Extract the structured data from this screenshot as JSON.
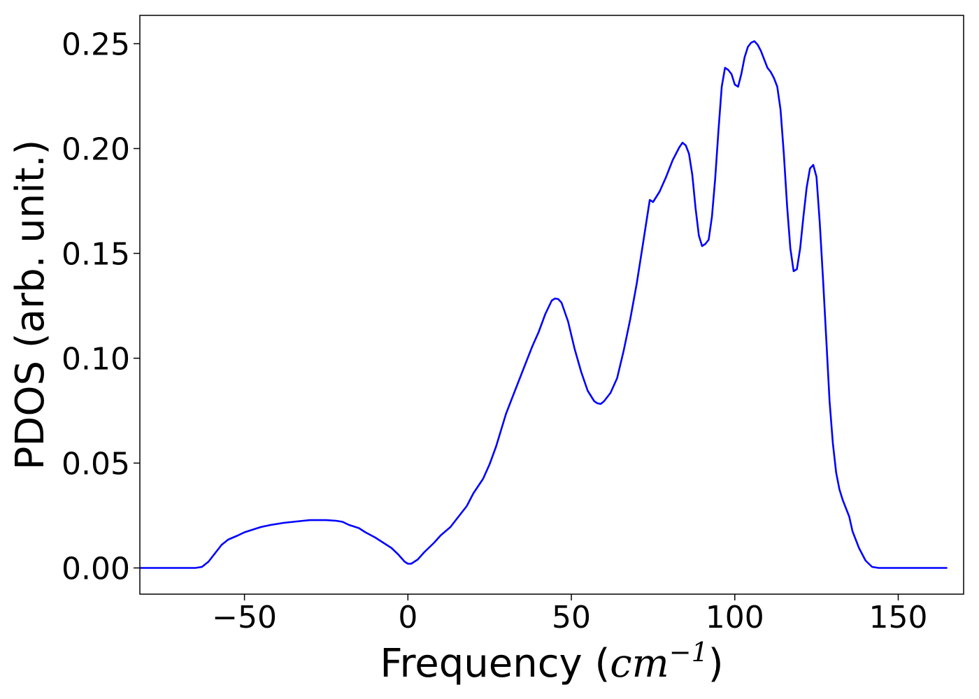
{
  "chart_data": {
    "type": "line",
    "xlabel": "Frequency (cm^-1)",
    "xlabel_parts": {
      "text": "Frequency (",
      "math_base": "cm",
      "math_sup": "−1",
      "close": ")"
    },
    "ylabel": "PDOS (arb. unit.)",
    "title": "",
    "xlim": [
      -82,
      170
    ],
    "ylim": [
      -0.0125,
      0.2635
    ],
    "xticks": [
      -50,
      0,
      50,
      100,
      150
    ],
    "xtick_labels": [
      "−50",
      "0",
      "50",
      "100",
      "150"
    ],
    "yticks": [
      0.0,
      0.05,
      0.1,
      0.15,
      0.2,
      0.25
    ],
    "ytick_labels": [
      "0.00",
      "0.05",
      "0.10",
      "0.15",
      "0.20",
      "0.25"
    ],
    "grid": false,
    "line_color": "#0000ff",
    "series": [
      {
        "x": [
          -82,
          -75,
          -70,
          -67,
          -65,
          -63,
          -61,
          -59,
          -57,
          -55,
          -52,
          -50,
          -47,
          -45,
          -42,
          -40,
          -38,
          -35,
          -32,
          -30,
          -27,
          -25,
          -22,
          -20,
          -18,
          -15,
          -13,
          -10,
          -8,
          -5,
          -3,
          -1,
          0,
          1,
          3,
          5,
          8,
          10,
          13,
          15,
          18,
          20,
          23,
          25,
          27,
          30,
          32,
          35,
          38,
          40,
          42,
          44,
          45,
          46,
          47,
          49,
          51,
          53,
          55,
          57,
          58,
          59,
          60,
          62,
          64,
          66,
          68,
          70,
          72,
          74,
          75,
          77,
          79,
          81,
          83,
          84,
          85,
          86,
          87,
          88,
          89,
          90,
          91,
          92,
          93,
          94,
          95,
          96,
          97,
          98,
          99,
          100,
          101,
          102,
          103,
          104,
          105,
          106,
          107,
          108,
          109,
          110,
          111,
          112,
          113,
          114,
          115,
          116,
          117,
          118,
          119,
          120,
          121,
          122,
          123,
          124,
          125,
          126,
          127,
          128,
          129,
          130,
          131,
          132,
          133,
          134,
          135,
          136,
          138,
          140,
          142,
          144,
          146,
          148,
          150,
          155,
          160,
          165
        ],
        "y": [
          0.0,
          0.0,
          0.0,
          0.0,
          0.0,
          0.0005,
          0.003,
          0.007,
          0.011,
          0.0135,
          0.0155,
          0.017,
          0.0185,
          0.0195,
          0.0205,
          0.021,
          0.0215,
          0.022,
          0.0225,
          0.0228,
          0.0228,
          0.0228,
          0.0225,
          0.022,
          0.0205,
          0.019,
          0.017,
          0.0145,
          0.0125,
          0.0095,
          0.0065,
          0.003,
          0.002,
          0.002,
          0.004,
          0.0075,
          0.012,
          0.0155,
          0.0195,
          0.0235,
          0.0295,
          0.0355,
          0.0425,
          0.0495,
          0.058,
          0.0735,
          0.0815,
          0.0935,
          0.1055,
          0.1125,
          0.121,
          0.1275,
          0.1285,
          0.1282,
          0.1265,
          0.1175,
          0.1045,
          0.0935,
          0.0845,
          0.0795,
          0.0785,
          0.0782,
          0.0795,
          0.0835,
          0.0905,
          0.1035,
          0.1185,
          0.1355,
          0.1555,
          0.1755,
          0.1745,
          0.1795,
          0.1865,
          0.1945,
          0.2005,
          0.2028,
          0.2015,
          0.1975,
          0.1875,
          0.1715,
          0.1585,
          0.1535,
          0.1545,
          0.1565,
          0.1675,
          0.1855,
          0.2085,
          0.2295,
          0.2385,
          0.2375,
          0.2355,
          0.2305,
          0.2295,
          0.2355,
          0.2435,
          0.2485,
          0.2505,
          0.2512,
          0.2495,
          0.2465,
          0.2425,
          0.2385,
          0.2365,
          0.2335,
          0.2295,
          0.2185,
          0.1975,
          0.1725,
          0.1525,
          0.1415,
          0.1425,
          0.1525,
          0.1675,
          0.1815,
          0.1905,
          0.1922,
          0.1865,
          0.1645,
          0.1375,
          0.1085,
          0.0795,
          0.0595,
          0.0455,
          0.0375,
          0.0325,
          0.0285,
          0.0245,
          0.0175,
          0.0095,
          0.0035,
          0.0005,
          0.0,
          0.0,
          0.0,
          0.0,
          0.0,
          0.0,
          0.0
        ]
      }
    ]
  }
}
